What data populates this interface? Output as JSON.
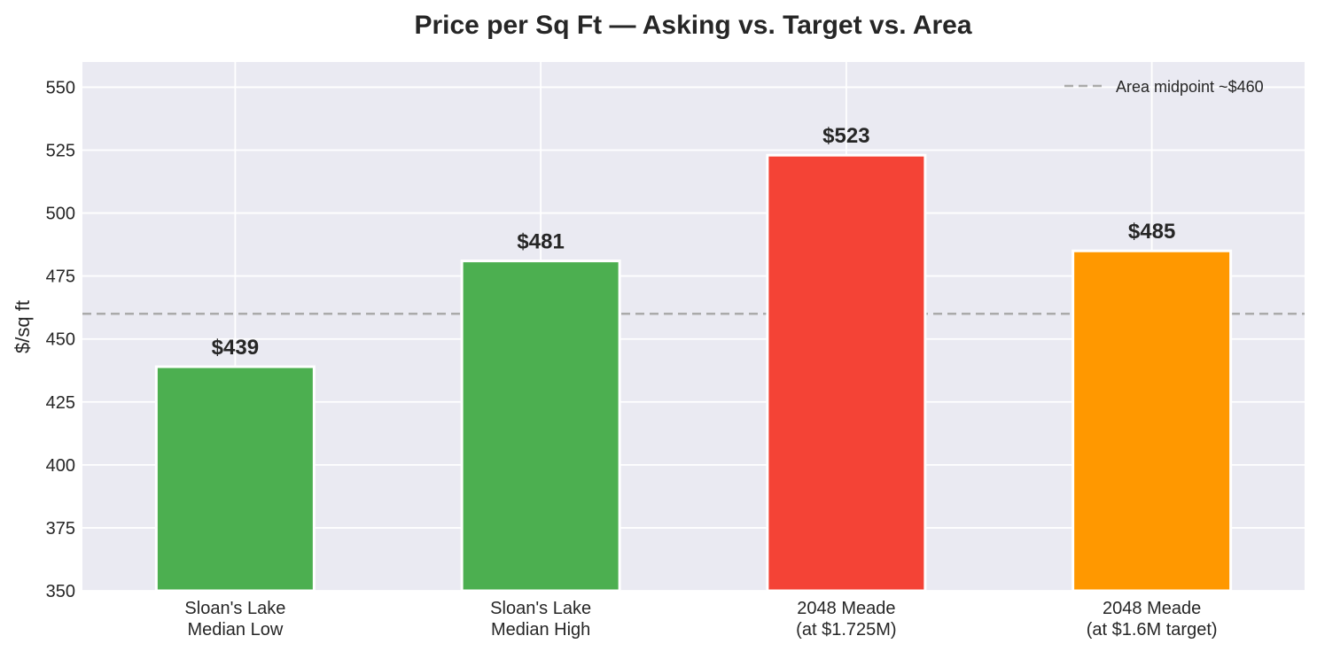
{
  "chart_data": {
    "type": "bar",
    "title": "Price per Sq Ft — Asking vs. Target vs. Area",
    "xlabel": "",
    "ylabel": "$/sq ft",
    "ylim": [
      350,
      560
    ],
    "yticks": [
      350,
      375,
      400,
      425,
      450,
      475,
      500,
      525,
      550
    ],
    "grid": true,
    "categories": [
      [
        "Sloan's Lake",
        "Median Low"
      ],
      [
        "Sloan's Lake",
        "Median High"
      ],
      [
        "2048 Meade",
        "(at $1.725M)"
      ],
      [
        "2048 Meade",
        "(at $1.6M target)"
      ]
    ],
    "values": [
      439,
      481,
      523,
      485
    ],
    "value_labels": [
      "$439",
      "$481",
      "$523",
      "$485"
    ],
    "bar_colors": [
      "#4caf50",
      "#4caf50",
      "#f44336",
      "#ff9800"
    ],
    "reference_line": {
      "value": 460,
      "label": "Area midpoint ~$460",
      "color": "#aaaaaa",
      "style": "dashed"
    },
    "legend_position": "top-right",
    "colors": {
      "plot_background": "#eaeaf2",
      "grid": "#ffffff",
      "text": "#262626"
    }
  }
}
